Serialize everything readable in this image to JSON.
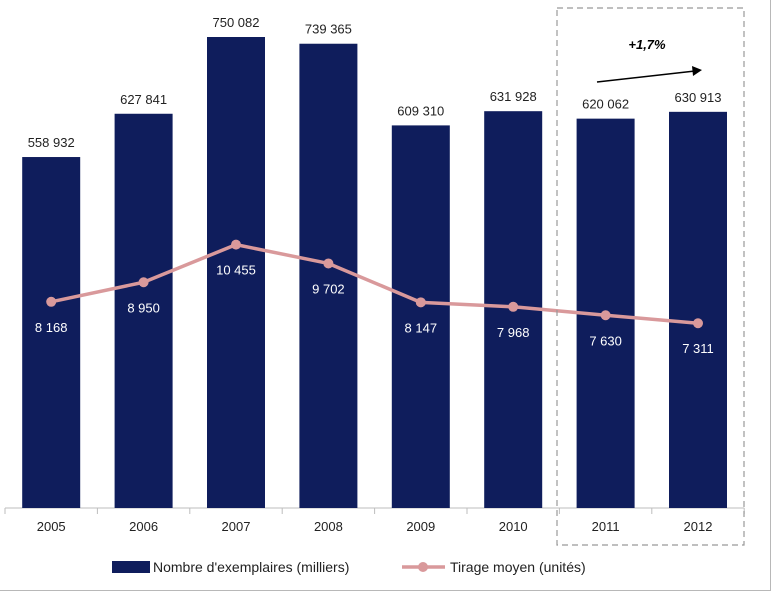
{
  "chart_data": {
    "type": "bar",
    "categories": [
      "2005",
      "2006",
      "2007",
      "2008",
      "2009",
      "2010",
      "2011",
      "2012"
    ],
    "series": [
      {
        "name": "Nombre d'exemplaires (milliers)",
        "type": "bar",
        "color": "#0f1d5c",
        "values": [
          558932,
          627841,
          750082,
          739365,
          609310,
          631928,
          620062,
          630913
        ],
        "labels": [
          "558 932",
          "627 841",
          "750 082",
          "739 365",
          "609 310",
          "631 928",
          "620 062",
          "630 913"
        ]
      },
      {
        "name": "Tirage moyen (unités)",
        "type": "line",
        "color": "#d9999b",
        "values": [
          8168,
          8950,
          10455,
          9702,
          8147,
          7968,
          7630,
          7311
        ],
        "labels": [
          "8 168",
          "8 950",
          "10 455",
          "9 702",
          "8 147",
          "7 968",
          "7 630",
          "7 311"
        ]
      }
    ],
    "annotation": {
      "text": "+1,7%",
      "spans_categories": [
        "2011",
        "2012"
      ]
    },
    "legend_position": "bottom",
    "grid": false
  }
}
